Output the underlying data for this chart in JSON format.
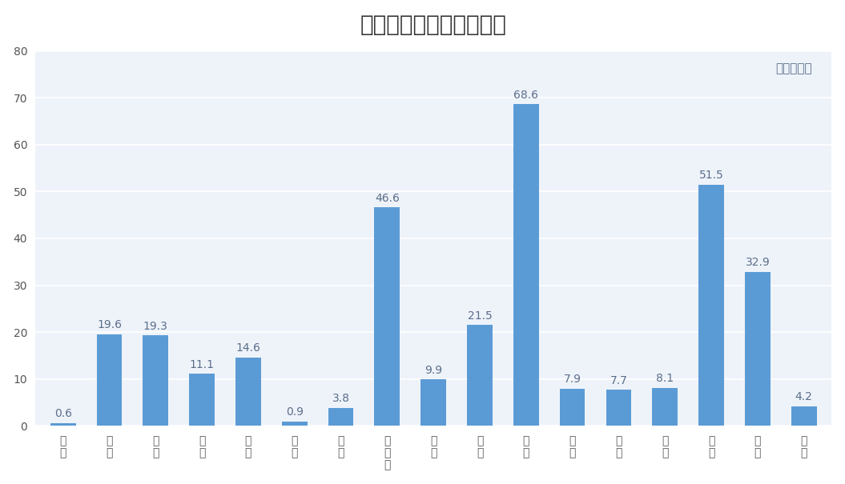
{
  "title": "中国电解铝产量区域分布",
  "unit_label": "单位：万吨",
  "categories": [
    "福\n建",
    "甘\n肃",
    "广\n西",
    "贵\n州",
    "河\n南",
    "湖\n北",
    "辽\n宁",
    "内\n蒙\n古",
    "宁\n夏",
    "青\n海",
    "山\n东",
    "山\n西",
    "陕\n西",
    "四\n川",
    "新\n疆",
    "云\n南",
    "重\n庆"
  ],
  "values": [
    0.6,
    19.6,
    19.3,
    11.1,
    14.6,
    0.9,
    3.8,
    46.6,
    9.9,
    21.5,
    68.6,
    7.9,
    7.7,
    8.1,
    51.5,
    32.9,
    4.2
  ],
  "bar_color": "#5B9BD5",
  "label_color": "#5B6E8A",
  "title_color": "#333333",
  "bg_color": "#FFFFFF",
  "plot_bg_color": "#EEF3FA",
  "grid_color": "#FFFFFF",
  "ylim": [
    0,
    80
  ],
  "yticks": [
    0,
    10,
    20,
    30,
    40,
    50,
    60,
    70,
    80
  ],
  "title_fontsize": 20,
  "label_fontsize": 10,
  "tick_fontsize": 10,
  "unit_fontsize": 11
}
